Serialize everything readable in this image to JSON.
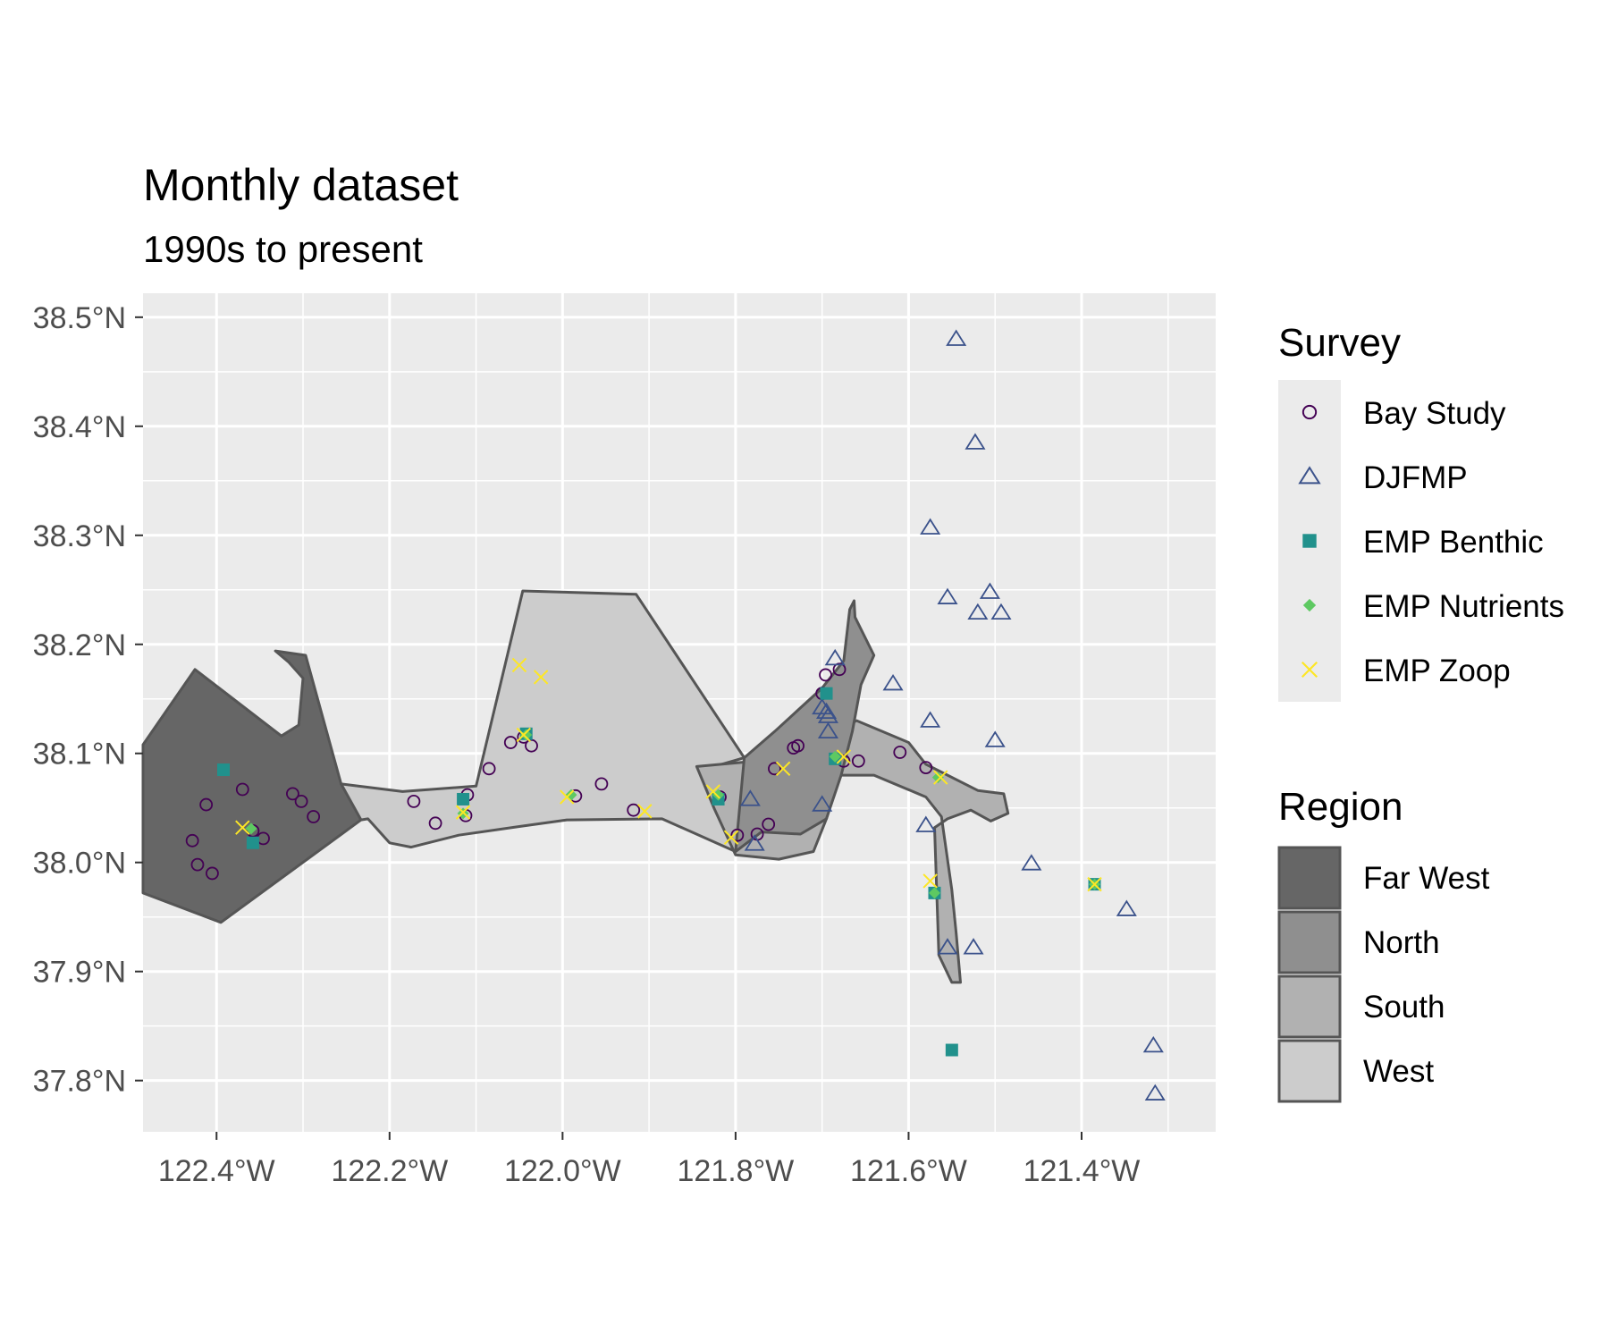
{
  "title": "Monthly dataset",
  "subtitle": "1990s to present",
  "colors": {
    "panel": "#ebebeb",
    "grid": "#ffffff",
    "bay_study": "#440154",
    "djfmp": "#3b528b",
    "emp_benthic": "#21918c",
    "emp_nutrients": "#5ec962",
    "emp_zoop": "#fde725",
    "far_west": "#666666",
    "north": "#8f8f8f",
    "south": "#b1b1b1",
    "west": "#cccccc"
  },
  "legend": {
    "survey": {
      "title": "Survey",
      "items": [
        {
          "key": "bay_study",
          "label": "Bay Study",
          "shape": "circle"
        },
        {
          "key": "djfmp",
          "label": "DJFMP",
          "shape": "triangle"
        },
        {
          "key": "emp_benthic",
          "label": "EMP Benthic",
          "shape": "square"
        },
        {
          "key": "emp_nutrients",
          "label": "EMP Nutrients",
          "shape": "diamond"
        },
        {
          "key": "emp_zoop",
          "label": "EMP Zoop",
          "shape": "cross"
        }
      ]
    },
    "region": {
      "title": "Region",
      "items": [
        {
          "key": "far_west",
          "label": "Far West"
        },
        {
          "key": "north",
          "label": "North"
        },
        {
          "key": "south",
          "label": "South"
        },
        {
          "key": "west",
          "label": "West"
        }
      ]
    }
  },
  "chart_data": {
    "type": "scatter",
    "xlim": [
      -122.485,
      -121.245
    ],
    "ylim": [
      37.753,
      38.522
    ],
    "x_ticks": [
      {
        "value": -122.4,
        "label": "122.4°W"
      },
      {
        "value": -122.2,
        "label": "122.2°W"
      },
      {
        "value": -122.0,
        "label": "122.0°W"
      },
      {
        "value": -121.8,
        "label": "121.8°W"
      },
      {
        "value": -121.6,
        "label": "121.6°W"
      },
      {
        "value": -121.4,
        "label": "121.4°W"
      }
    ],
    "y_ticks": [
      {
        "value": 37.8,
        "label": "37.8°N"
      },
      {
        "value": 37.9,
        "label": "37.9°N"
      },
      {
        "value": 38.0,
        "label": "38.0°N"
      },
      {
        "value": 38.1,
        "label": "38.1°N"
      },
      {
        "value": 38.2,
        "label": "38.2°N"
      },
      {
        "value": 38.3,
        "label": "38.3°N"
      },
      {
        "value": 38.4,
        "label": "38.4°N"
      },
      {
        "value": 38.5,
        "label": "38.5°N"
      }
    ],
    "grid": true,
    "regions": [
      {
        "name": "Far West",
        "fill": "far_west",
        "coords": [
          [
            -122.485,
            38.108
          ],
          [
            -122.425,
            38.177
          ],
          [
            -122.325,
            38.116
          ],
          [
            -122.305,
            38.126
          ],
          [
            -122.3,
            38.169
          ],
          [
            -122.317,
            38.184
          ],
          [
            -122.332,
            38.194
          ],
          [
            -122.297,
            38.19
          ],
          [
            -122.256,
            38.072
          ],
          [
            -122.25,
            38.07
          ],
          [
            -122.233,
            38.039
          ],
          [
            -122.395,
            37.945
          ],
          [
            -122.485,
            37.972
          ]
        ]
      },
      {
        "name": "West",
        "fill": "west",
        "coords": [
          [
            -122.256,
            38.072
          ],
          [
            -122.185,
            38.065
          ],
          [
            -122.1,
            38.07
          ],
          [
            -122.046,
            38.249
          ],
          [
            -121.915,
            38.246
          ],
          [
            -121.79,
            38.096
          ],
          [
            -121.825,
            38.088
          ],
          [
            -121.775,
            38.048
          ],
          [
            -121.8,
            38.01
          ],
          [
            -121.885,
            38.04
          ],
          [
            -121.995,
            38.039
          ],
          [
            -122.05,
            38.033
          ],
          [
            -122.12,
            38.025
          ],
          [
            -122.175,
            38.014
          ],
          [
            -122.2,
            38.018
          ],
          [
            -122.225,
            38.04
          ],
          [
            -122.233,
            38.039
          ]
        ]
      },
      {
        "name": "South",
        "fill": "south",
        "coords": [
          [
            -121.845,
            38.088
          ],
          [
            -121.79,
            38.092
          ],
          [
            -121.72,
            38.085
          ],
          [
            -121.69,
            38.12
          ],
          [
            -121.66,
            38.13
          ],
          [
            -121.6,
            38.11
          ],
          [
            -121.58,
            38.09
          ],
          [
            -121.52,
            38.066
          ],
          [
            -121.49,
            38.063
          ],
          [
            -121.485,
            38.045
          ],
          [
            -121.505,
            38.038
          ],
          [
            -121.528,
            38.048
          ],
          [
            -121.555,
            38.04
          ],
          [
            -121.57,
            38.032
          ],
          [
            -121.565,
            37.915
          ],
          [
            -121.55,
            37.89
          ],
          [
            -121.54,
            37.89
          ],
          [
            -121.545,
            37.935
          ],
          [
            -121.55,
            37.975
          ],
          [
            -121.562,
            38.042
          ],
          [
            -121.58,
            38.06
          ],
          [
            -121.64,
            38.08
          ],
          [
            -121.68,
            38.08
          ],
          [
            -121.695,
            38.04
          ],
          [
            -121.71,
            38.01
          ],
          [
            -121.75,
            38.003
          ],
          [
            -121.8,
            38.007
          ],
          [
            -121.825,
            38.05
          ]
        ]
      },
      {
        "name": "North",
        "fill": "north",
        "coords": [
          [
            -121.79,
            38.096
          ],
          [
            -121.755,
            38.12
          ],
          [
            -121.7,
            38.16
          ],
          [
            -121.675,
            38.185
          ],
          [
            -121.668,
            38.232
          ],
          [
            -121.663,
            38.24
          ],
          [
            -121.662,
            38.225
          ],
          [
            -121.64,
            38.19
          ],
          [
            -121.655,
            38.163
          ],
          [
            -121.665,
            38.12
          ],
          [
            -121.678,
            38.08
          ],
          [
            -121.695,
            38.04
          ],
          [
            -121.725,
            38.026
          ],
          [
            -121.77,
            38.028
          ],
          [
            -121.8,
            38.01
          ]
        ]
      }
    ],
    "series": [
      {
        "name": "Bay Study",
        "shape": "circle",
        "color": "bay_study",
        "points": [
          [
            -122.428,
            38.02
          ],
          [
            -122.422,
            37.998
          ],
          [
            -122.405,
            37.99
          ],
          [
            -122.412,
            38.053
          ],
          [
            -122.37,
            38.067
          ],
          [
            -122.358,
            38.029
          ],
          [
            -122.346,
            38.022
          ],
          [
            -122.312,
            38.063
          ],
          [
            -122.302,
            38.056
          ],
          [
            -122.288,
            38.042
          ],
          [
            -122.172,
            38.056
          ],
          [
            -122.147,
            38.036
          ],
          [
            -122.11,
            38.062
          ],
          [
            -122.112,
            38.043
          ],
          [
            -122.085,
            38.086
          ],
          [
            -122.06,
            38.11
          ],
          [
            -122.045,
            38.115
          ],
          [
            -122.036,
            38.107
          ],
          [
            -121.985,
            38.061
          ],
          [
            -121.955,
            38.072
          ],
          [
            -121.918,
            38.048
          ],
          [
            -121.818,
            38.06
          ],
          [
            -121.798,
            38.025
          ],
          [
            -121.775,
            38.026
          ],
          [
            -121.762,
            38.035
          ],
          [
            -121.755,
            38.086
          ],
          [
            -121.733,
            38.105
          ],
          [
            -121.728,
            38.107
          ],
          [
            -121.7,
            38.155
          ],
          [
            -121.696,
            38.172
          ],
          [
            -121.68,
            38.177
          ],
          [
            -121.675,
            38.093
          ],
          [
            -121.658,
            38.093
          ],
          [
            -121.61,
            38.101
          ],
          [
            -121.58,
            38.087
          ]
        ]
      },
      {
        "name": "DJFMP",
        "shape": "triangle",
        "color": "djfmp",
        "points": [
          [
            -121.545,
            38.48
          ],
          [
            -121.523,
            38.385
          ],
          [
            -121.575,
            38.307
          ],
          [
            -121.555,
            38.243
          ],
          [
            -121.506,
            38.248
          ],
          [
            -121.52,
            38.229
          ],
          [
            -121.493,
            38.229
          ],
          [
            -121.685,
            38.187
          ],
          [
            -121.618,
            38.164
          ],
          [
            -121.7,
            38.142
          ],
          [
            -121.695,
            38.138
          ],
          [
            -121.693,
            38.134
          ],
          [
            -121.693,
            38.12
          ],
          [
            -121.575,
            38.13
          ],
          [
            -121.5,
            38.112
          ],
          [
            -121.783,
            38.058
          ],
          [
            -121.7,
            38.053
          ],
          [
            -121.58,
            38.034
          ],
          [
            -121.778,
            38.017
          ],
          [
            -121.458,
            37.999
          ],
          [
            -121.348,
            37.957
          ],
          [
            -121.555,
            37.922
          ],
          [
            -121.525,
            37.922
          ],
          [
            -121.317,
            37.832
          ],
          [
            -121.315,
            37.788
          ]
        ]
      },
      {
        "name": "EMP Benthic",
        "shape": "square",
        "color": "emp_benthic",
        "points": [
          [
            -122.392,
            38.085
          ],
          [
            -122.358,
            38.018
          ],
          [
            -122.115,
            38.058
          ],
          [
            -122.042,
            38.118
          ],
          [
            -121.82,
            38.058
          ],
          [
            -121.695,
            38.155
          ],
          [
            -121.685,
            38.095
          ],
          [
            -121.57,
            37.972
          ],
          [
            -121.55,
            37.828
          ],
          [
            -121.385,
            37.98
          ]
        ]
      },
      {
        "name": "EMP Nutrients",
        "shape": "diamond",
        "color": "emp_nutrients",
        "points": [
          [
            -122.36,
            38.031
          ],
          [
            -122.115,
            38.045
          ],
          [
            -122.042,
            38.117
          ],
          [
            -121.99,
            38.062
          ],
          [
            -121.82,
            38.062
          ],
          [
            -121.685,
            38.097
          ],
          [
            -121.566,
            38.078
          ],
          [
            -121.57,
            37.972
          ],
          [
            -121.385,
            37.98
          ]
        ]
      },
      {
        "name": "EMP Zoop",
        "shape": "cross",
        "color": "emp_zoop",
        "points": [
          [
            -122.37,
            38.032
          ],
          [
            -122.115,
            38.046
          ],
          [
            -122.05,
            38.181
          ],
          [
            -122.025,
            38.17
          ],
          [
            -122.045,
            38.117
          ],
          [
            -121.995,
            38.06
          ],
          [
            -121.905,
            38.047
          ],
          [
            -121.826,
            38.065
          ],
          [
            -121.805,
            38.023
          ],
          [
            -121.745,
            38.086
          ],
          [
            -121.675,
            38.097
          ],
          [
            -121.563,
            38.078
          ],
          [
            -121.575,
            37.983
          ],
          [
            -121.385,
            37.98
          ]
        ]
      }
    ]
  }
}
